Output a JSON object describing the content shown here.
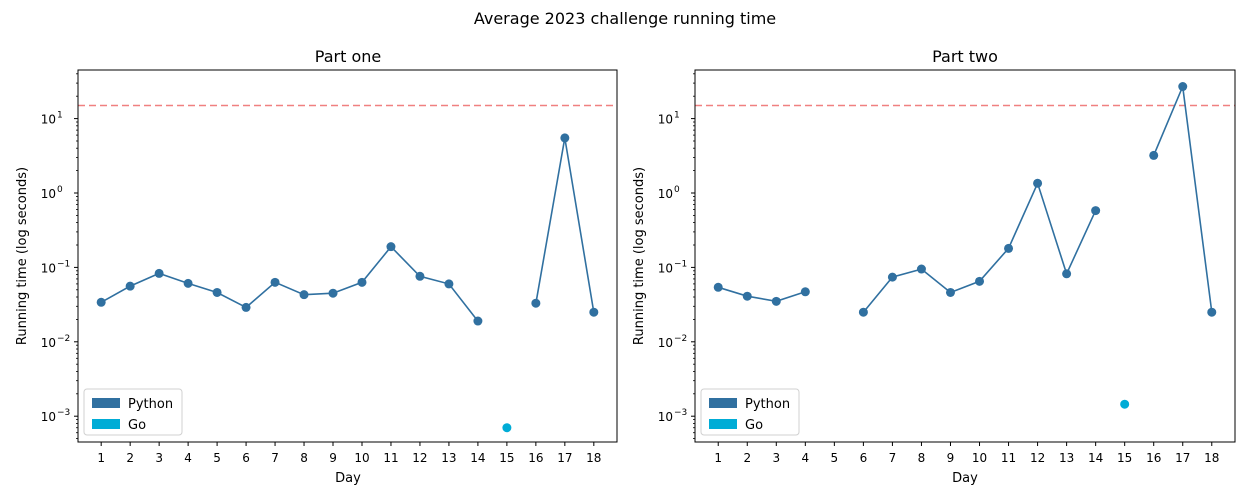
{
  "figure": {
    "suptitle": "Average 2023 challenge running time"
  },
  "colors": {
    "python": "#3070a0",
    "go": "#00acd6",
    "threshold": "#f08080"
  },
  "chart_data": [
    {
      "type": "line",
      "title": "Part one",
      "xlabel": "Day",
      "ylabel": "Running time (log seconds)",
      "yscale": "log",
      "ylim": [
        0.00045,
        45
      ],
      "xlim": [
        0.2,
        18.8
      ],
      "categories": [
        1,
        2,
        3,
        4,
        5,
        6,
        7,
        8,
        9,
        10,
        11,
        12,
        13,
        14,
        15,
        16,
        17,
        18
      ],
      "threshold": 15,
      "legend": {
        "location": "lower-left",
        "entries": [
          "Python",
          "Go"
        ]
      },
      "y_tick_labels": [
        "10",
        "10",
        "10",
        "10",
        "10"
      ],
      "y_tick_exponents": [
        "−3",
        "−2",
        "−1",
        "0",
        "1"
      ],
      "y_tick_values": [
        0.001,
        0.01,
        0.1,
        1,
        10
      ],
      "series": [
        {
          "name": "Python",
          "color": "#3070a0",
          "segments": [
            [
              [
                1,
                0.034
              ],
              [
                2,
                0.056
              ],
              [
                3,
                0.083
              ],
              [
                4,
                0.061
              ],
              [
                5,
                0.046
              ],
              [
                6,
                0.029
              ],
              [
                7,
                0.063
              ],
              [
                8,
                0.043
              ],
              [
                9,
                0.045
              ],
              [
                10,
                0.063
              ],
              [
                11,
                0.19
              ],
              [
                12,
                0.076
              ],
              [
                13,
                0.06
              ],
              [
                14,
                0.019
              ]
            ],
            [
              [
                16,
                0.033
              ],
              [
                17,
                5.5
              ],
              [
                18,
                0.025
              ]
            ]
          ]
        },
        {
          "name": "Go",
          "color": "#00acd6",
          "segments": [
            [
              [
                15,
                0.0007
              ]
            ]
          ]
        }
      ]
    },
    {
      "type": "line",
      "title": "Part two",
      "xlabel": "Day",
      "ylabel": "Running time (log seconds)",
      "yscale": "log",
      "ylim": [
        0.00045,
        45
      ],
      "xlim": [
        0.2,
        18.8
      ],
      "categories": [
        1,
        2,
        3,
        4,
        5,
        6,
        7,
        8,
        9,
        10,
        11,
        12,
        13,
        14,
        15,
        16,
        17,
        18
      ],
      "threshold": 15,
      "legend": {
        "location": "lower-left",
        "entries": [
          "Python",
          "Go"
        ]
      },
      "y_tick_labels": [
        "10",
        "10",
        "10",
        "10",
        "10"
      ],
      "y_tick_exponents": [
        "−3",
        "−2",
        "−1",
        "0",
        "1"
      ],
      "y_tick_values": [
        0.001,
        0.01,
        0.1,
        1,
        10
      ],
      "series": [
        {
          "name": "Python",
          "color": "#3070a0",
          "segments": [
            [
              [
                1,
                0.054
              ],
              [
                2,
                0.041
              ],
              [
                3,
                0.035
              ],
              [
                4,
                0.047
              ]
            ],
            [
              [
                6,
                0.025
              ],
              [
                7,
                0.074
              ],
              [
                8,
                0.095
              ],
              [
                9,
                0.046
              ],
              [
                10,
                0.065
              ],
              [
                11,
                0.18
              ],
              [
                12,
                1.35
              ],
              [
                13,
                0.082
              ],
              [
                14,
                0.58
              ]
            ],
            [
              [
                16,
                3.2
              ],
              [
                17,
                27
              ],
              [
                18,
                0.025
              ]
            ]
          ]
        },
        {
          "name": "Go",
          "color": "#00acd6",
          "segments": [
            [
              [
                15,
                0.00145
              ]
            ]
          ]
        }
      ]
    }
  ]
}
